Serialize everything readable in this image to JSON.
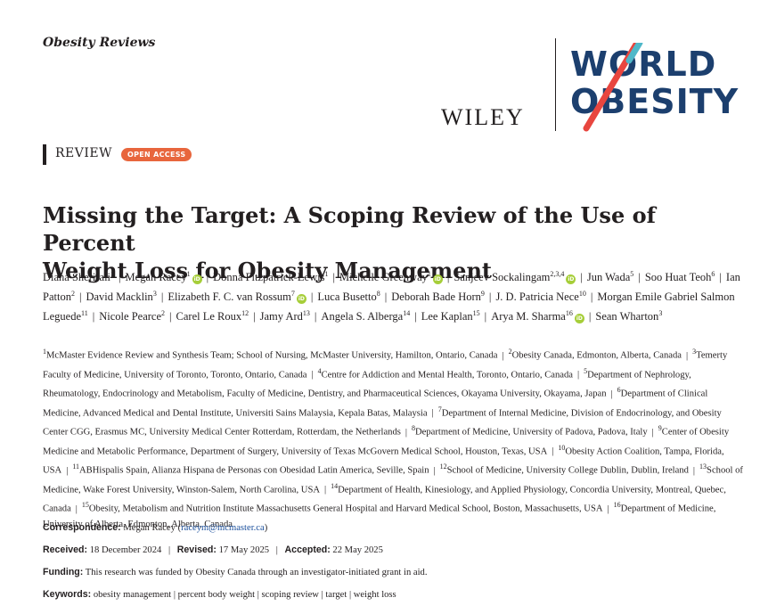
{
  "journal": "Obesity Reviews",
  "publisher": "WILEY",
  "partner_logo": {
    "line1": "WORLD",
    "line2": "OBESITY",
    "stripe_color": "#e8463f",
    "text_color": "#1c3f6e"
  },
  "article_type": "REVIEW",
  "access_badge": "OPEN ACCESS",
  "title_line1": "Missing the Target: A Scoping Review of the Use of Percent",
  "title_line2": "Weight Loss for Obesity Management",
  "authors": [
    {
      "name": "Diana Sherifali",
      "sup": "1",
      "orcid": false
    },
    {
      "name": "Megan Racey",
      "sup": "1",
      "orcid": true
    },
    {
      "name": "Donna Fitzpatrick-Lewis",
      "sup": "1",
      "orcid": false
    },
    {
      "name": "Michelle Greenway",
      "sup": "1",
      "orcid": true
    },
    {
      "name": "Sanjeev Sockalingam",
      "sup": "2,3,4",
      "orcid": true
    },
    {
      "name": "Jun Wada",
      "sup": "5",
      "orcid": false
    },
    {
      "name": "Soo Huat Teoh",
      "sup": "6",
      "orcid": false
    },
    {
      "name": "Ian Patton",
      "sup": "2",
      "orcid": false
    },
    {
      "name": "David Macklin",
      "sup": "3",
      "orcid": false
    },
    {
      "name": "Elizabeth F. C. van Rossum",
      "sup": "7",
      "orcid": true
    },
    {
      "name": "Luca Busetto",
      "sup": "8",
      "orcid": false
    },
    {
      "name": "Deborah Bade Horn",
      "sup": "9",
      "orcid": false
    },
    {
      "name": "J. D. Patricia Nece",
      "sup": "10",
      "orcid": false
    },
    {
      "name": "Morgan Emile Gabriel Salmon Leguede",
      "sup": "11",
      "orcid": false
    },
    {
      "name": "Nicole Pearce",
      "sup": "2",
      "orcid": false
    },
    {
      "name": "Carel Le Roux",
      "sup": "12",
      "orcid": false
    },
    {
      "name": "Jamy Ard",
      "sup": "13",
      "orcid": false
    },
    {
      "name": "Angela S. Alberga",
      "sup": "14",
      "orcid": false
    },
    {
      "name": "Lee Kaplan",
      "sup": "15",
      "orcid": false
    },
    {
      "name": "Arya M. Sharma",
      "sup": "16",
      "orcid": true
    },
    {
      "name": "Sean Wharton",
      "sup": "3",
      "orcid": false
    }
  ],
  "affiliations": [
    {
      "num": "1",
      "text": "McMaster Evidence Review and Synthesis Team; School of Nursing, McMaster University, Hamilton, Ontario, Canada"
    },
    {
      "num": "2",
      "text": "Obesity Canada, Edmonton, Alberta, Canada"
    },
    {
      "num": "3",
      "text": "Temerty Faculty of Medicine, University of Toronto, Toronto, Ontario, Canada"
    },
    {
      "num": "4",
      "text": "Centre for Addiction and Mental Health, Toronto, Ontario, Canada"
    },
    {
      "num": "5",
      "text": "Department of Nephrology, Rheumatology, Endocrinology and Metabolism, Faculty of Medicine, Dentistry, and Pharmaceutical Sciences, Okayama University, Okayama, Japan"
    },
    {
      "num": "6",
      "text": "Department of Clinical Medicine, Advanced Medical and Dental Institute, Universiti Sains Malaysia, Kepala Batas, Malaysia"
    },
    {
      "num": "7",
      "text": "Department of Internal Medicine, Division of Endocrinology, and Obesity Center CGG, Erasmus MC, University Medical Center Rotterdam, Rotterdam, the Netherlands"
    },
    {
      "num": "8",
      "text": "Department of Medicine, University of Padova, Padova, Italy"
    },
    {
      "num": "9",
      "text": "Center of Obesity Medicine and Metabolic Performance, Department of Surgery, University of Texas McGovern Medical School, Houston, Texas, USA"
    },
    {
      "num": "10",
      "text": "Obesity Action Coalition, Tampa, Florida, USA"
    },
    {
      "num": "11",
      "text": "ABHispalis Spain, Alianza Hispana de Personas con Obesidad Latin America, Seville, Spain"
    },
    {
      "num": "12",
      "text": "School of Medicine, University College Dublin, Dublin, Ireland"
    },
    {
      "num": "13",
      "text": "School of Medicine, Wake Forest University, Winston-Salem, North Carolina, USA"
    },
    {
      "num": "14",
      "text": "Department of Health, Kinesiology, and Applied Physiology, Concordia University, Montreal, Quebec, Canada"
    },
    {
      "num": "15",
      "text": "Obesity, Metabolism and Nutrition Institute Massachusetts General Hospital and Harvard Medical School, Boston, Massachusetts, USA"
    },
    {
      "num": "16",
      "text": "Department of Medicine, University of Alberta, Edmonton, Alberta, Canada"
    }
  ],
  "correspondence": {
    "label": "Correspondence:",
    "name": "Megan Racey",
    "email": "raceym@mcmaster.ca"
  },
  "dates": {
    "received_label": "Received:",
    "received": "18 December 2024",
    "revised_label": "Revised:",
    "revised": "17 May 2025",
    "accepted_label": "Accepted:",
    "accepted": "22 May 2025"
  },
  "funding": {
    "label": "Funding:",
    "text": "This research was funded by Obesity Canada through an investigator-initiated grant in aid."
  },
  "keywords": {
    "label": "Keywords:",
    "text": "obesity management | percent body weight | scoping review | target | weight loss"
  }
}
